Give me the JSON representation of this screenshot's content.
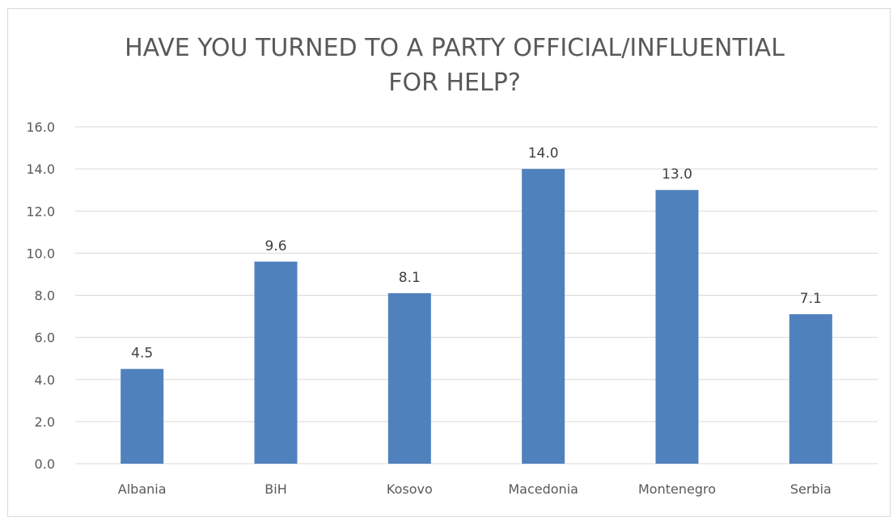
{
  "chart_data": {
    "type": "bar",
    "title_lines": [
      "HAVE YOU TURNED TO A PARTY OFFICIAL/INFLUENTIAL",
      "FOR HELP?"
    ],
    "categories": [
      "Albania",
      "BiH",
      "Kosovo",
      "Macedonia",
      "Montenegro",
      "Serbia"
    ],
    "values": [
      4.5,
      9.6,
      8.1,
      14.0,
      13.0,
      7.1
    ],
    "data_labels": [
      "4.5",
      "9.6",
      "8.1",
      "14.0",
      "13.0",
      "7.1"
    ],
    "y_ticks": [
      "0.0",
      "2.0",
      "4.0",
      "6.0",
      "8.0",
      "10.0",
      "12.0",
      "14.0",
      "16.0"
    ],
    "xlabel": "",
    "ylabel": "",
    "ylim": [
      0,
      16
    ],
    "grid": true,
    "legend": "none",
    "bar_color": "#4f81bd",
    "grid_color": "#d9d9d9",
    "text_color": "#595959"
  }
}
